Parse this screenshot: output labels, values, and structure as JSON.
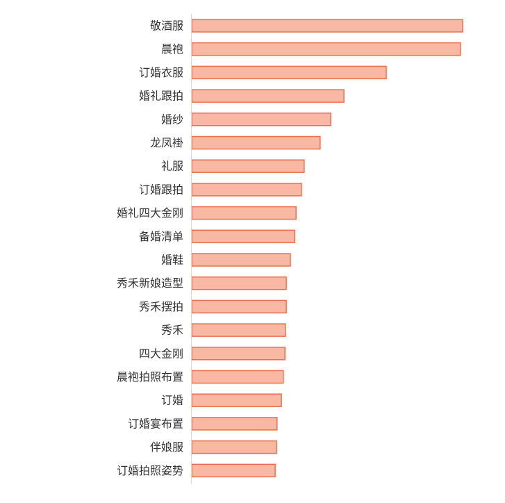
{
  "chart_data": {
    "type": "bar",
    "orientation": "horizontal",
    "title": "",
    "xlabel": "",
    "ylabel": "",
    "xlim": [
      0,
      100
    ],
    "grid": false,
    "legend": "none",
    "categories": [
      "敬酒服",
      "晨袍",
      "订婚衣服",
      "婚礼跟拍",
      "婚纱",
      "龙凤褂",
      "礼服",
      "订婚跟拍",
      "婚礼四大金刚",
      "备婚清单",
      "婚鞋",
      "秀禾新娘造型",
      "秀禾摆拍",
      "秀禾",
      "四大金刚",
      "晨袍拍照布置",
      "订婚",
      "订婚宴布置",
      "伴娘服",
      "订婚拍照姿势"
    ],
    "values": [
      100,
      99.2,
      71.8,
      56.2,
      51.3,
      47.4,
      41.5,
      40.5,
      38.5,
      38.0,
      36.4,
      34.9,
      34.9,
      34.6,
      34.4,
      33.8,
      33.1,
      31.5,
      31.3,
      30.8
    ],
    "colors": {
      "bar_fill": "#f8b8a4",
      "bar_stroke": "#e8704f",
      "axis": "#d9d9d9",
      "label": "#333333"
    }
  }
}
